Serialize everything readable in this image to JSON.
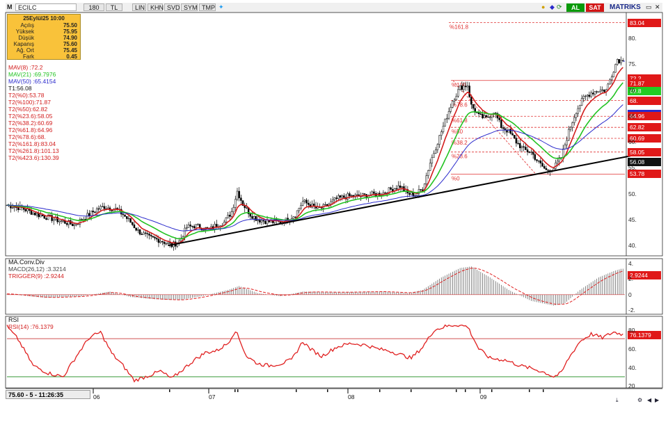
{
  "toolbar": {
    "symbol": "ECILC",
    "period": "180",
    "currency": "TL",
    "scales": [
      "LIN",
      "KHN",
      "SVD",
      "SYM",
      "TMP"
    ],
    "buy_label": "AL",
    "sell_label": "SAT",
    "brand": "MATRIKS"
  },
  "info": {
    "title": "25Eylül25 10:00",
    "rows": [
      {
        "k": "Açılış",
        "v": "75.50"
      },
      {
        "k": "Yüksek",
        "v": "75.95"
      },
      {
        "k": "Düşük",
        "v": "74.90"
      },
      {
        "k": "Kapanış",
        "v": "75.60"
      },
      {
        "k": "Ağ. Ort",
        "v": "75.45"
      },
      {
        "k": "Fark",
        "v": "0.45"
      }
    ]
  },
  "legend": [
    {
      "text": "MAV(8)      :72.2",
      "color": "#d21c1c"
    },
    {
      "text": "MAV(21)     :69.7976",
      "color": "#22c322"
    },
    {
      "text": "MAV(50)     :65.4154",
      "color": "#2a2acc"
    },
    {
      "text": "T1:56.08",
      "color": "#111111"
    },
    {
      "text": "T2(%0):53.78",
      "color": "#d21c1c"
    },
    {
      "text": "T2(%100):71.87",
      "color": "#d21c1c"
    },
    {
      "text": "T2(%50):62.82",
      "color": "#d21c1c"
    },
    {
      "text": "T2(%23.6):58.05",
      "color": "#d21c1c"
    },
    {
      "text": "T2(%38.2):60.69",
      "color": "#d21c1c"
    },
    {
      "text": "T2(%61.8):64.96",
      "color": "#d21c1c"
    },
    {
      "text": "T2(%78.6):68.",
      "color": "#d21c1c"
    },
    {
      "text": "T2(%161.8):83.04",
      "color": "#d21c1c"
    },
    {
      "text": "T2(%261.8):101.13",
      "color": "#d21c1c"
    },
    {
      "text": "T2(%423.6):130.39",
      "color": "#d21c1c"
    }
  ],
  "fib_labels": {
    "l161": "%161.8",
    "l100": "%100",
    "l786": "%78.6",
    "l618": "%61.8",
    "l50": "%50",
    "l382": "%38.2",
    "l236": "%23.6",
    "l0": "%0"
  },
  "price_boxes": [
    {
      "v": "83.04",
      "y": 83.04,
      "bg": "#e01818",
      "fg": "#ffffff"
    },
    {
      "v": "72.2",
      "y": 72.2,
      "bg": "#e01818",
      "fg": "#ffffff"
    },
    {
      "v": "71.87",
      "y": 71.3,
      "bg": "#e01818",
      "fg": "#ffffff"
    },
    {
      "v": "69.8",
      "y": 69.8,
      "bg": "#22cc22",
      "fg": "#ffffff"
    },
    {
      "v": "68.",
      "y": 68.0,
      "bg": "#e01818",
      "fg": "#ffffff"
    },
    {
      "v": "65.42",
      "y": 65.42,
      "bg": "#2a2acc",
      "fg": "#ffffff"
    },
    {
      "v": "64.96",
      "y": 64.96,
      "bg": "#e01818",
      "fg": "#ffffff"
    },
    {
      "v": "62.82",
      "y": 62.82,
      "bg": "#e01818",
      "fg": "#ffffff"
    },
    {
      "v": "60.69",
      "y": 60.69,
      "bg": "#e01818",
      "fg": "#ffffff"
    },
    {
      "v": "58.05",
      "y": 58.05,
      "bg": "#e01818",
      "fg": "#ffffff"
    },
    {
      "v": "56.08",
      "y": 56.08,
      "bg": "#111111",
      "fg": "#ffffff"
    },
    {
      "v": "53.78",
      "y": 53.78,
      "bg": "#e01818",
      "fg": "#ffffff"
    }
  ],
  "macd": {
    "title": "MA.Conv.Div",
    "line1": "MACD(26,12)   :3.3214",
    "line2": "TRIGGER(9)    :2.9244",
    "trigger_value": "2.9244"
  },
  "rsi": {
    "title": "RSI",
    "line1": "RSI(14)       :76.1379",
    "value": "76.1379"
  },
  "status": {
    "text": "75.60 - 5 - 11:26:35"
  },
  "dates": [
    "06",
    "07",
    "08",
    "09"
  ],
  "colors": {
    "ma8": "#d21c1c",
    "ma21": "#22c322",
    "ma50": "#2a2acc",
    "fib": "#e03030",
    "trend": "#000000"
  },
  "chart_data": [
    {
      "type": "candlestick",
      "title": "ECILC",
      "ylim": [
        38,
        85
      ],
      "yticks": [
        "40.",
        "45.",
        "50.",
        "55.",
        "60.",
        "65.",
        "70.",
        "75.",
        "80."
      ],
      "xlabels": [
        "06",
        "07",
        "08",
        "09"
      ],
      "anchors": [
        [
          0,
          47.8
        ],
        [
          8,
          47.2
        ],
        [
          16,
          46.0
        ],
        [
          24,
          45.2
        ],
        [
          30,
          44.6
        ],
        [
          36,
          44.0
        ],
        [
          42,
          45.5
        ],
        [
          48,
          47.0
        ],
        [
          52,
          47.5
        ],
        [
          58,
          47.0
        ],
        [
          62,
          46.0
        ],
        [
          66,
          44.5
        ],
        [
          70,
          42.8
        ],
        [
          76,
          41.5
        ],
        [
          82,
          41.0
        ],
        [
          88,
          40.0
        ],
        [
          92,
          40.8
        ],
        [
          96,
          43.5
        ],
        [
          100,
          43.8
        ],
        [
          104,
          43.5
        ],
        [
          108,
          43.0
        ],
        [
          112,
          44.0
        ],
        [
          116,
          44.5
        ],
        [
          120,
          46.5
        ],
        [
          123,
          50.5
        ],
        [
          126,
          48.0
        ],
        [
          130,
          46.0
        ],
        [
          134,
          45.0
        ],
        [
          140,
          44.6
        ],
        [
          146,
          44.5
        ],
        [
          150,
          45.0
        ],
        [
          154,
          46.0
        ],
        [
          158,
          48.5
        ],
        [
          162,
          47.8
        ],
        [
          166,
          47.0
        ],
        [
          170,
          47.5
        ],
        [
          176,
          49.0
        ],
        [
          182,
          49.5
        ],
        [
          188,
          49.5
        ],
        [
          194,
          49.8
        ],
        [
          200,
          50.0
        ],
        [
          206,
          51.0
        ],
        [
          210,
          51.5
        ],
        [
          214,
          50.0
        ],
        [
          218,
          49.8
        ],
        [
          222,
          51.0
        ],
        [
          226,
          56.0
        ],
        [
          230,
          60.0
        ],
        [
          234,
          64.0
        ],
        [
          238,
          68.0
        ],
        [
          242,
          70.5
        ],
        [
          246,
          71.0
        ],
        [
          248,
          67.0
        ],
        [
          252,
          65.0
        ],
        [
          256,
          64.5
        ],
        [
          260,
          66.0
        ],
        [
          264,
          63.0
        ],
        [
          268,
          62.0
        ],
        [
          272,
          60.0
        ],
        [
          276,
          58.5
        ],
        [
          280,
          58.0
        ],
        [
          284,
          56.0
        ],
        [
          288,
          54.5
        ],
        [
          292,
          55.0
        ],
        [
          296,
          57.0
        ],
        [
          300,
          62.0
        ],
        [
          304,
          66.0
        ],
        [
          308,
          68.5
        ],
        [
          312,
          69.5
        ],
        [
          316,
          70.0
        ],
        [
          320,
          70.0
        ],
        [
          324,
          74.0
        ],
        [
          326,
          76.0
        ],
        [
          328,
          75.6
        ]
      ],
      "series": [
        {
          "name": "MAV(8)",
          "last": 72.2
        },
        {
          "name": "MAV(21)",
          "last": 69.7976
        },
        {
          "name": "MAV(50)",
          "last": 65.4154
        }
      ],
      "fibonacci": [
        {
          "label": "%161.8",
          "y": 83.04
        },
        {
          "label": "%100",
          "y": 71.87
        },
        {
          "label": "%78.6",
          "y": 68.0
        },
        {
          "label": "%61.8",
          "y": 64.96
        },
        {
          "label": "%50",
          "y": 62.82
        },
        {
          "label": "%38.2",
          "y": 60.69
        },
        {
          "label": "%23.6",
          "y": 58.05
        },
        {
          "label": "%0",
          "y": 53.78
        }
      ],
      "trendline": [
        [
          86,
          40.0
        ],
        [
          333,
          57.3
        ]
      ],
      "last_price_line": 75.6
    },
    {
      "type": "bar",
      "title": "MA.Conv.Div",
      "ylim": [
        -2.5,
        4.6
      ],
      "yticks": [
        "4.",
        "2.",
        "0",
        "-2."
      ],
      "series": [
        {
          "name": "MACD(26,12)",
          "last": 3.3214
        },
        {
          "name": "TRIGGER(9)",
          "last": 2.9244
        }
      ],
      "anchors": [
        [
          0,
          0.1
        ],
        [
          20,
          -0.4
        ],
        [
          40,
          -0.2
        ],
        [
          55,
          0.4
        ],
        [
          66,
          -0.3
        ],
        [
          80,
          -0.6
        ],
        [
          92,
          -0.7
        ],
        [
          104,
          -0.2
        ],
        [
          118,
          0.6
        ],
        [
          124,
          1.1
        ],
        [
          134,
          0.2
        ],
        [
          146,
          -0.2
        ],
        [
          158,
          0.4
        ],
        [
          176,
          0.3
        ],
        [
          200,
          0.4
        ],
        [
          214,
          0.2
        ],
        [
          222,
          0.6
        ],
        [
          232,
          2.2
        ],
        [
          242,
          3.4
        ],
        [
          248,
          3.6
        ],
        [
          258,
          2.2
        ],
        [
          268,
          0.6
        ],
        [
          280,
          -0.8
        ],
        [
          292,
          -1.4
        ],
        [
          298,
          -1.1
        ],
        [
          306,
          0.6
        ],
        [
          316,
          2.2
        ],
        [
          324,
          3.0
        ],
        [
          328,
          3.3
        ]
      ]
    },
    {
      "type": "line",
      "title": "RSI",
      "ylim": [
        18,
        95
      ],
      "yticks": [
        "80.",
        "60.",
        "40.",
        "20"
      ],
      "series": [
        {
          "name": "RSI(14)",
          "last": 76.1379
        }
      ],
      "reference_lines": [
        71,
        30
      ],
      "anchors": [
        [
          0,
          84
        ],
        [
          6,
          70
        ],
        [
          14,
          42
        ],
        [
          22,
          34
        ],
        [
          30,
          30
        ],
        [
          38,
          55
        ],
        [
          44,
          72
        ],
        [
          50,
          78
        ],
        [
          56,
          55
        ],
        [
          62,
          42
        ],
        [
          68,
          26
        ],
        [
          74,
          30
        ],
        [
          82,
          36
        ],
        [
          88,
          28
        ],
        [
          94,
          38
        ],
        [
          100,
          48
        ],
        [
          106,
          56
        ],
        [
          112,
          58
        ],
        [
          118,
          66
        ],
        [
          122,
          80
        ],
        [
          128,
          52
        ],
        [
          134,
          44
        ],
        [
          140,
          42
        ],
        [
          146,
          44
        ],
        [
          152,
          48
        ],
        [
          158,
          68
        ],
        [
          162,
          60
        ],
        [
          168,
          52
        ],
        [
          176,
          62
        ],
        [
          184,
          66
        ],
        [
          192,
          64
        ],
        [
          198,
          60
        ],
        [
          204,
          58
        ],
        [
          210,
          54
        ],
        [
          216,
          50
        ],
        [
          222,
          62
        ],
        [
          228,
          80
        ],
        [
          234,
          84
        ],
        [
          240,
          86
        ],
        [
          246,
          84
        ],
        [
          252,
          60
        ],
        [
          258,
          50
        ],
        [
          266,
          48
        ],
        [
          274,
          42
        ],
        [
          282,
          38
        ],
        [
          288,
          34
        ],
        [
          292,
          30
        ],
        [
          296,
          34
        ],
        [
          300,
          50
        ],
        [
          306,
          68
        ],
        [
          312,
          76
        ],
        [
          318,
          72
        ],
        [
          324,
          78
        ],
        [
          328,
          76.1
        ]
      ]
    }
  ]
}
